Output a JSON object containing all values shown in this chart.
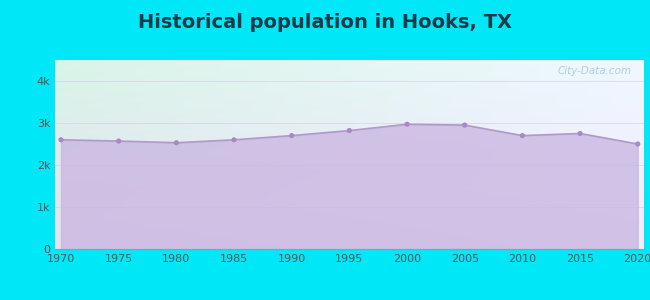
{
  "title": "Historical population in Hooks, TX",
  "years": [
    1970,
    1975,
    1980,
    1985,
    1990,
    1995,
    2000,
    2005,
    2010,
    2015,
    2020
  ],
  "population": [
    2600,
    2570,
    2530,
    2600,
    2700,
    2820,
    2970,
    2950,
    2700,
    2750,
    2500
  ],
  "background_color": "#00e8f8",
  "plot_bg_top_left": "#d8f5e8",
  "plot_bg_top_right": "#f0f8ff",
  "plot_bg_bottom": "#e8e0f0",
  "fill_color": "#c8b4e0",
  "fill_alpha": 0.75,
  "line_color": "#b09aca",
  "dot_color": "#a888c8",
  "dot_size": 14,
  "title_fontsize": 14,
  "title_color": "#1a3a4a",
  "tick_label_color": "#555555",
  "tick_label_size": 8,
  "ylim": [
    0,
    4500
  ],
  "yticks": [
    0,
    1000,
    2000,
    3000,
    4000
  ],
  "ytick_labels": [
    "0",
    "1k",
    "2k",
    "3k",
    "4k"
  ],
  "xticks": [
    1970,
    1975,
    1980,
    1985,
    1990,
    1995,
    2000,
    2005,
    2010,
    2015,
    2020
  ],
  "watermark": "City-Data.com",
  "watermark_color": "#a8c8d8",
  "grid_color": "#d8d0e8",
  "grid_alpha": 0.8
}
